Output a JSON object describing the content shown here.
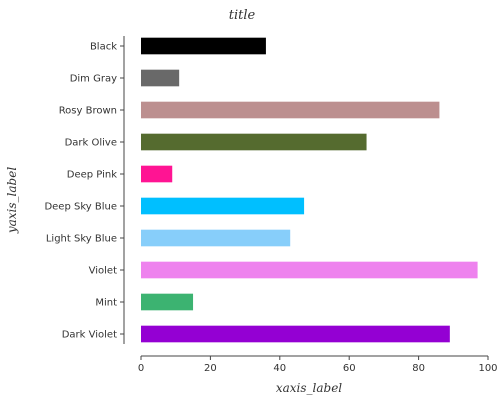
{
  "chart_data": {
    "type": "bar",
    "orientation": "horizontal",
    "title": "title",
    "xlabel": "xaxis_label",
    "ylabel": "yaxis_label",
    "xlim": [
      0,
      100
    ],
    "xticks": [
      0,
      20,
      40,
      60,
      80,
      100
    ],
    "grid": false,
    "legend": "none",
    "categories": [
      "Dark Violet",
      "Mint",
      "Violet",
      "Light Sky Blue",
      "Deep Sky Blue",
      "Deep Pink",
      "Dark Olive",
      "Rosy Brown",
      "Dim Gray",
      "Black"
    ],
    "values": [
      89,
      15,
      97,
      43,
      47,
      9,
      65,
      86,
      11,
      36
    ],
    "colors": [
      "#9400d3",
      "#3cb371",
      "#ee82ee",
      "#87cefa",
      "#00bfff",
      "#ff1493",
      "#556b2f",
      "#bc8f8f",
      "#696969",
      "#000000"
    ]
  }
}
